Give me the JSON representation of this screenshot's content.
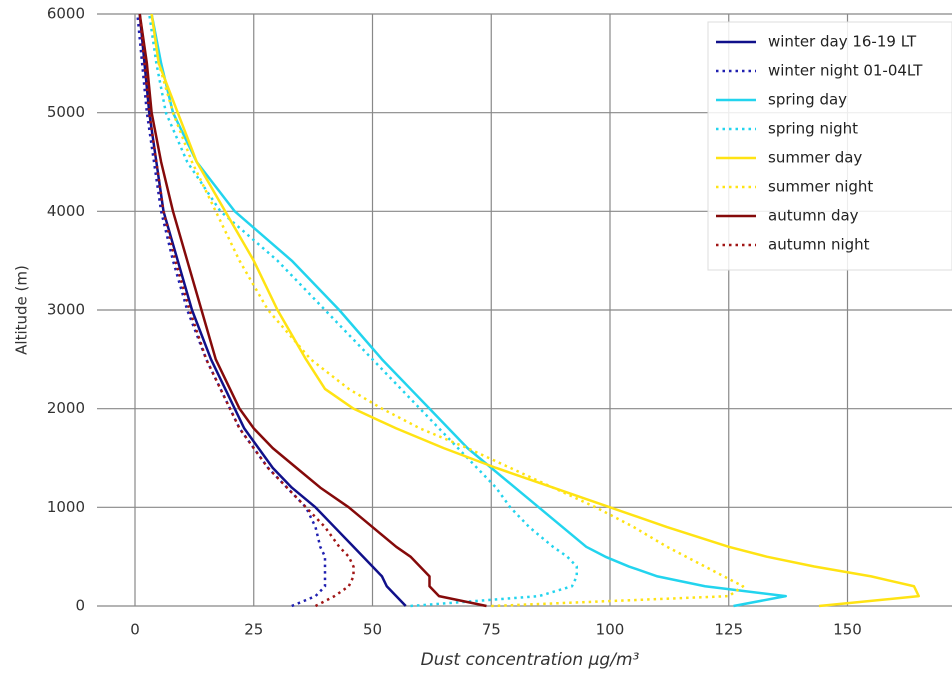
{
  "chart_data": {
    "type": "line",
    "x_label": "Dust concentration μg/m³",
    "y_label": "Altitude  (m)",
    "y": [
      0,
      100,
      200,
      300,
      400,
      500,
      600,
      800,
      1000,
      1200,
      1400,
      1600,
      1800,
      2000,
      2200,
      2500,
      3000,
      3500,
      4000,
      4500,
      5000,
      5500,
      6000
    ],
    "series": [
      {
        "name": "winter day 16-19 LT",
        "color": "#10108a",
        "line_style": "solid",
        "values": [
          57,
          55,
          53,
          52,
          50,
          48,
          46,
          42,
          38,
          33,
          29,
          26,
          23,
          21,
          19,
          16,
          12,
          9,
          6,
          4.5,
          3,
          2,
          1
        ]
      },
      {
        "name": "winter night 01-04LT",
        "color": "#2020b0",
        "line_style": "dotted",
        "values": [
          33,
          38,
          40,
          40,
          40,
          40,
          39,
          38,
          36,
          32,
          28,
          25,
          22,
          20,
          18,
          15,
          11,
          8,
          5.5,
          4,
          2.5,
          1.5,
          0.5
        ]
      },
      {
        "name": "spring day",
        "color": "#22d4ee",
        "line_style": "solid",
        "values": [
          126,
          137,
          120,
          110,
          104,
          99,
          95,
          90,
          85,
          80,
          75,
          70,
          66,
          62,
          58,
          52,
          43,
          33,
          21,
          13,
          8,
          5.5,
          3.5
        ]
      },
      {
        "name": "spring night",
        "color": "#22d4ee",
        "line_style": "dotted",
        "values": [
          58,
          85,
          92,
          93,
          93,
          91,
          88,
          83,
          79,
          76,
          72,
          68,
          64,
          60,
          56,
          50,
          40,
          30,
          18,
          11,
          6.5,
          4.5,
          3
        ]
      },
      {
        "name": "summer day",
        "color": "#ffe313",
        "line_style": "solid",
        "values": [
          144,
          165,
          164,
          155,
          143,
          133,
          125,
          112,
          100,
          88,
          76,
          65,
          55,
          46,
          40,
          36,
          30,
          25,
          19,
          13,
          9,
          5,
          3.5
        ]
      },
      {
        "name": "summer night",
        "color": "#ffe313",
        "line_style": "dotted",
        "values": [
          75,
          125,
          128,
          124,
          120,
          116,
          112,
          105,
          97,
          88,
          79,
          70,
          60,
          52,
          45,
          37,
          28,
          22,
          17,
          12,
          8,
          5,
          3.5
        ]
      },
      {
        "name": "autumn day",
        "color": "#850a0a",
        "line_style": "solid",
        "values": [
          74,
          64,
          62,
          62,
          60,
          58,
          55,
          50,
          45,
          39,
          34,
          29,
          25,
          22,
          20,
          17,
          14,
          11,
          8,
          5.5,
          3.5,
          2.5,
          1
        ]
      },
      {
        "name": "autumn night",
        "color": "#a01515",
        "line_style": "dotted",
        "values": [
          38,
          42,
          45,
          46,
          46,
          45,
          43,
          40,
          36,
          32,
          28,
          25,
          22,
          20,
          18,
          15,
          11.5,
          8.5,
          6,
          4.5,
          3,
          2,
          1
        ]
      }
    ],
    "xlim": [
      -8,
      172
    ],
    "xticks": [
      0,
      25,
      50,
      75,
      100,
      125,
      150
    ],
    "ylim": [
      0,
      6000
    ],
    "yticks": [
      0,
      1000,
      2000,
      3000,
      4000,
      5000,
      6000
    ],
    "grid": true,
    "legend": "upper right"
  }
}
